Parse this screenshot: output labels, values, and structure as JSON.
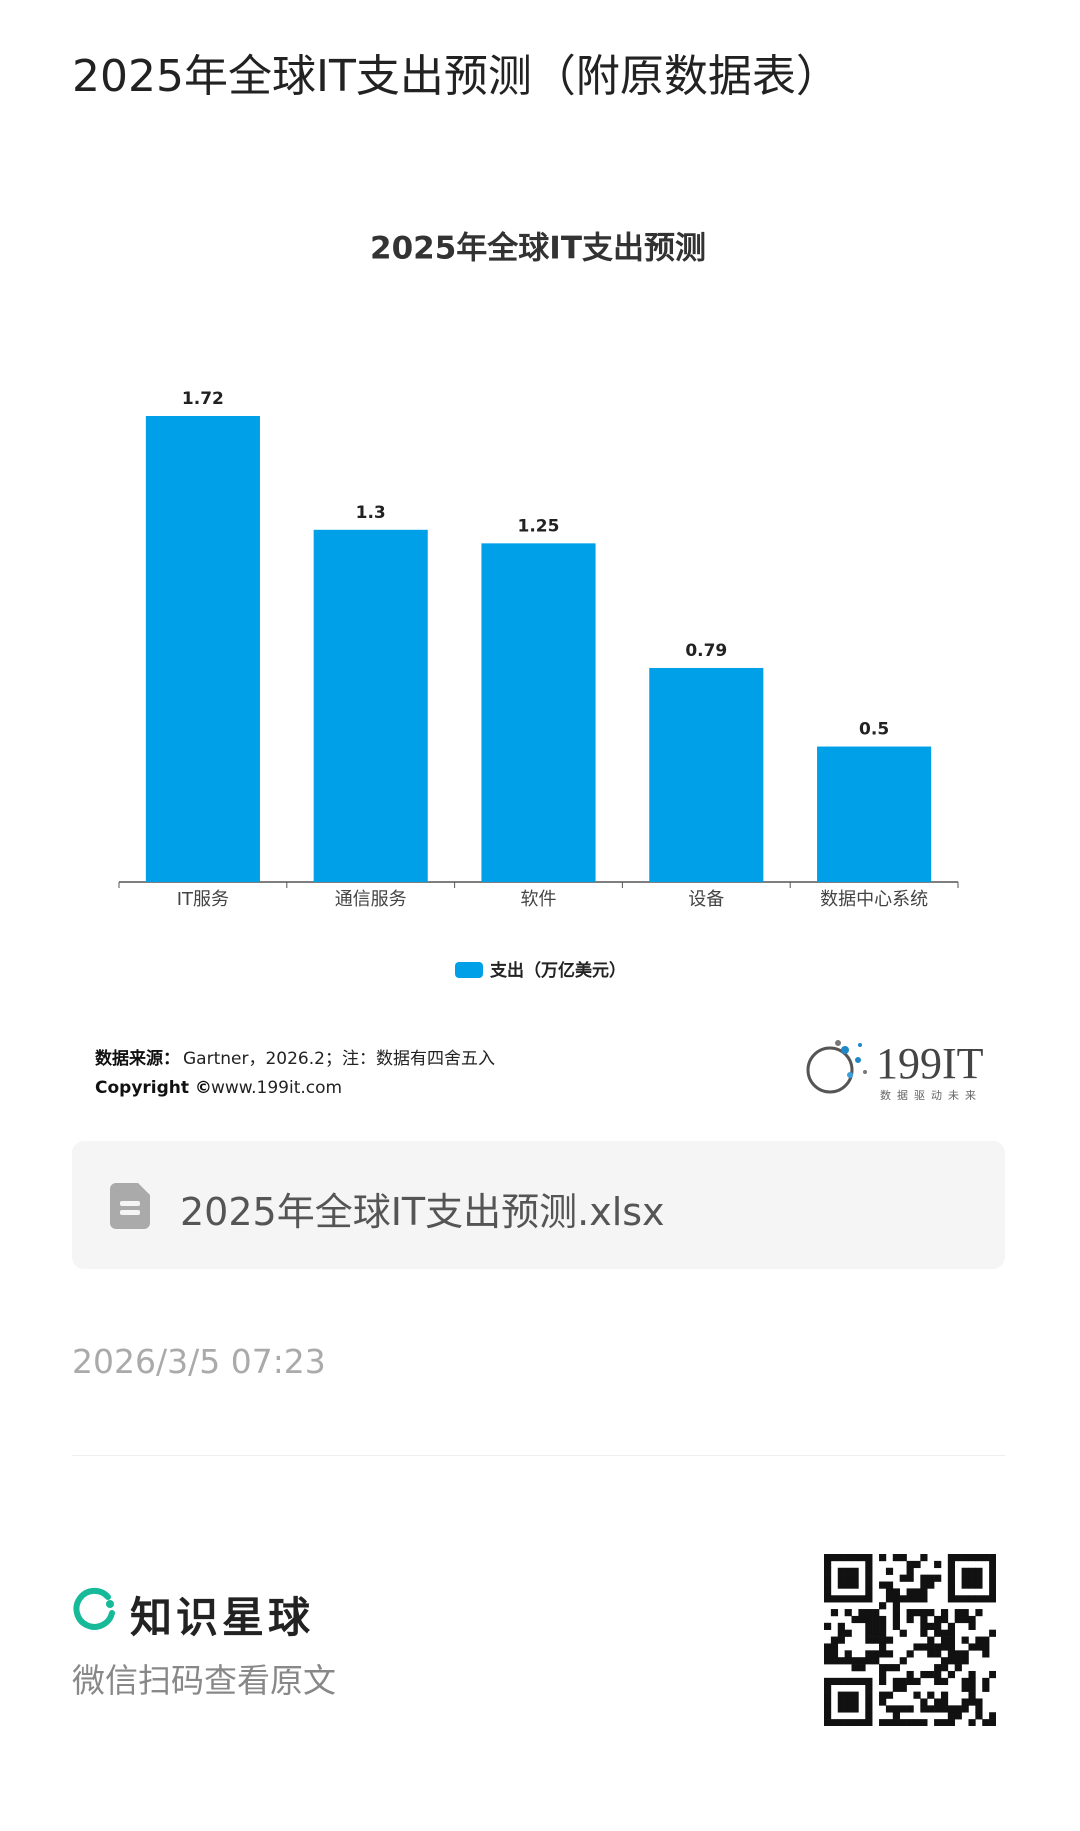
{
  "header": {
    "title": "2025年全球IT支出预测（附原数据表）"
  },
  "chart_data": {
    "type": "bar",
    "title": "2025年全球IT支出预测",
    "categories": [
      "IT服务",
      "通信服务",
      "软件",
      "设备",
      "数据中心系统"
    ],
    "series": [
      {
        "name": "支出（万亿美元）",
        "color": "#00a0e9",
        "values": [
          1.72,
          1.3,
          1.25,
          0.79,
          0.5
        ]
      }
    ],
    "legend": "bottom",
    "grid": false
  },
  "source": {
    "label": "数据来源：",
    "text": "Gartner，2026.2；注：数据有四舍五入",
    "copyright_label": "Copyright ©",
    "copyright_text": "www.199it.com"
  },
  "logo": {
    "name": "199IT",
    "slogan": "数据驱动未来"
  },
  "file": {
    "name": "2025年全球IT支出预测.xlsx"
  },
  "date": "2026/3/5 07:23",
  "footer": {
    "brand": "知识星球",
    "hint": "微信扫码查看原文"
  }
}
